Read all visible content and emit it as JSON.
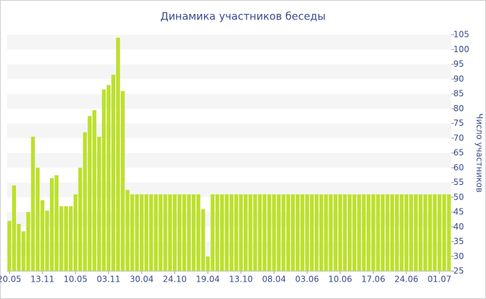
{
  "chart_data": {
    "type": "bar",
    "title": "Динамика участников беседы",
    "y_label": "Число участников",
    "categories": [
      "20.05",
      null,
      null,
      null,
      null,
      null,
      null,
      "13.11",
      null,
      null,
      null,
      null,
      null,
      null,
      "10.05",
      null,
      null,
      null,
      null,
      null,
      null,
      "03.11",
      null,
      null,
      null,
      null,
      null,
      null,
      "30.04",
      null,
      null,
      null,
      null,
      null,
      null,
      "24.10",
      null,
      null,
      null,
      null,
      null,
      null,
      "19.04",
      null,
      null,
      null,
      null,
      null,
      null,
      "13.10",
      null,
      null,
      null,
      null,
      null,
      null,
      "08.04",
      null,
      null,
      null,
      null,
      null,
      null,
      "03.06",
      null,
      null,
      null,
      null,
      null,
      null,
      "10.06",
      null,
      null,
      null,
      null,
      null,
      null,
      "17.06",
      null,
      null,
      null,
      null,
      null,
      null,
      "24.06",
      null,
      null,
      null,
      null,
      null,
      null,
      "01.07",
      null,
      null
    ],
    "values": [
      42,
      54,
      41,
      38.5,
      45,
      70.5,
      60,
      49,
      45.5,
      56.5,
      57.5,
      47,
      47,
      47,
      51,
      60,
      72,
      77.5,
      79.5,
      70.5,
      86.5,
      88,
      91.5,
      104,
      86,
      52.5,
      51,
      51,
      51,
      51,
      51,
      51,
      51,
      51,
      51,
      51,
      51,
      51,
      51,
      51,
      51,
      46,
      30,
      51,
      51,
      51,
      51,
      51,
      51,
      51,
      51,
      51,
      51,
      51,
      51,
      51,
      51,
      51,
      51,
      51,
      51,
      51,
      51,
      51,
      51,
      51,
      51,
      51,
      51,
      51,
      51,
      51,
      51,
      51,
      51,
      51,
      51,
      51,
      51,
      51,
      51,
      51,
      51,
      51,
      51,
      51,
      51,
      51,
      51,
      51,
      51,
      51,
      51,
      51
    ],
    "color": "#bde02d",
    "ylim": [
      25,
      105
    ],
    "yticks": [
      25,
      30,
      35,
      40,
      45,
      50,
      55,
      60,
      65,
      70,
      75,
      80,
      85,
      90,
      95,
      100,
      105
    ],
    "grid": true
  }
}
